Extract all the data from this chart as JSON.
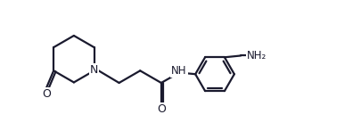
{
  "bg_color": "#ffffff",
  "line_color": "#1a1a2e",
  "o_color": "#1a1a2e",
  "n_color": "#1a1a2e",
  "nh2_color": "#1a1a2e",
  "line_width": 1.6,
  "figsize": [
    4.06,
    1.47
  ],
  "dpi": 100,
  "xlim": [
    -0.3,
    9.7
  ],
  "ylim": [
    -0.2,
    3.8
  ]
}
